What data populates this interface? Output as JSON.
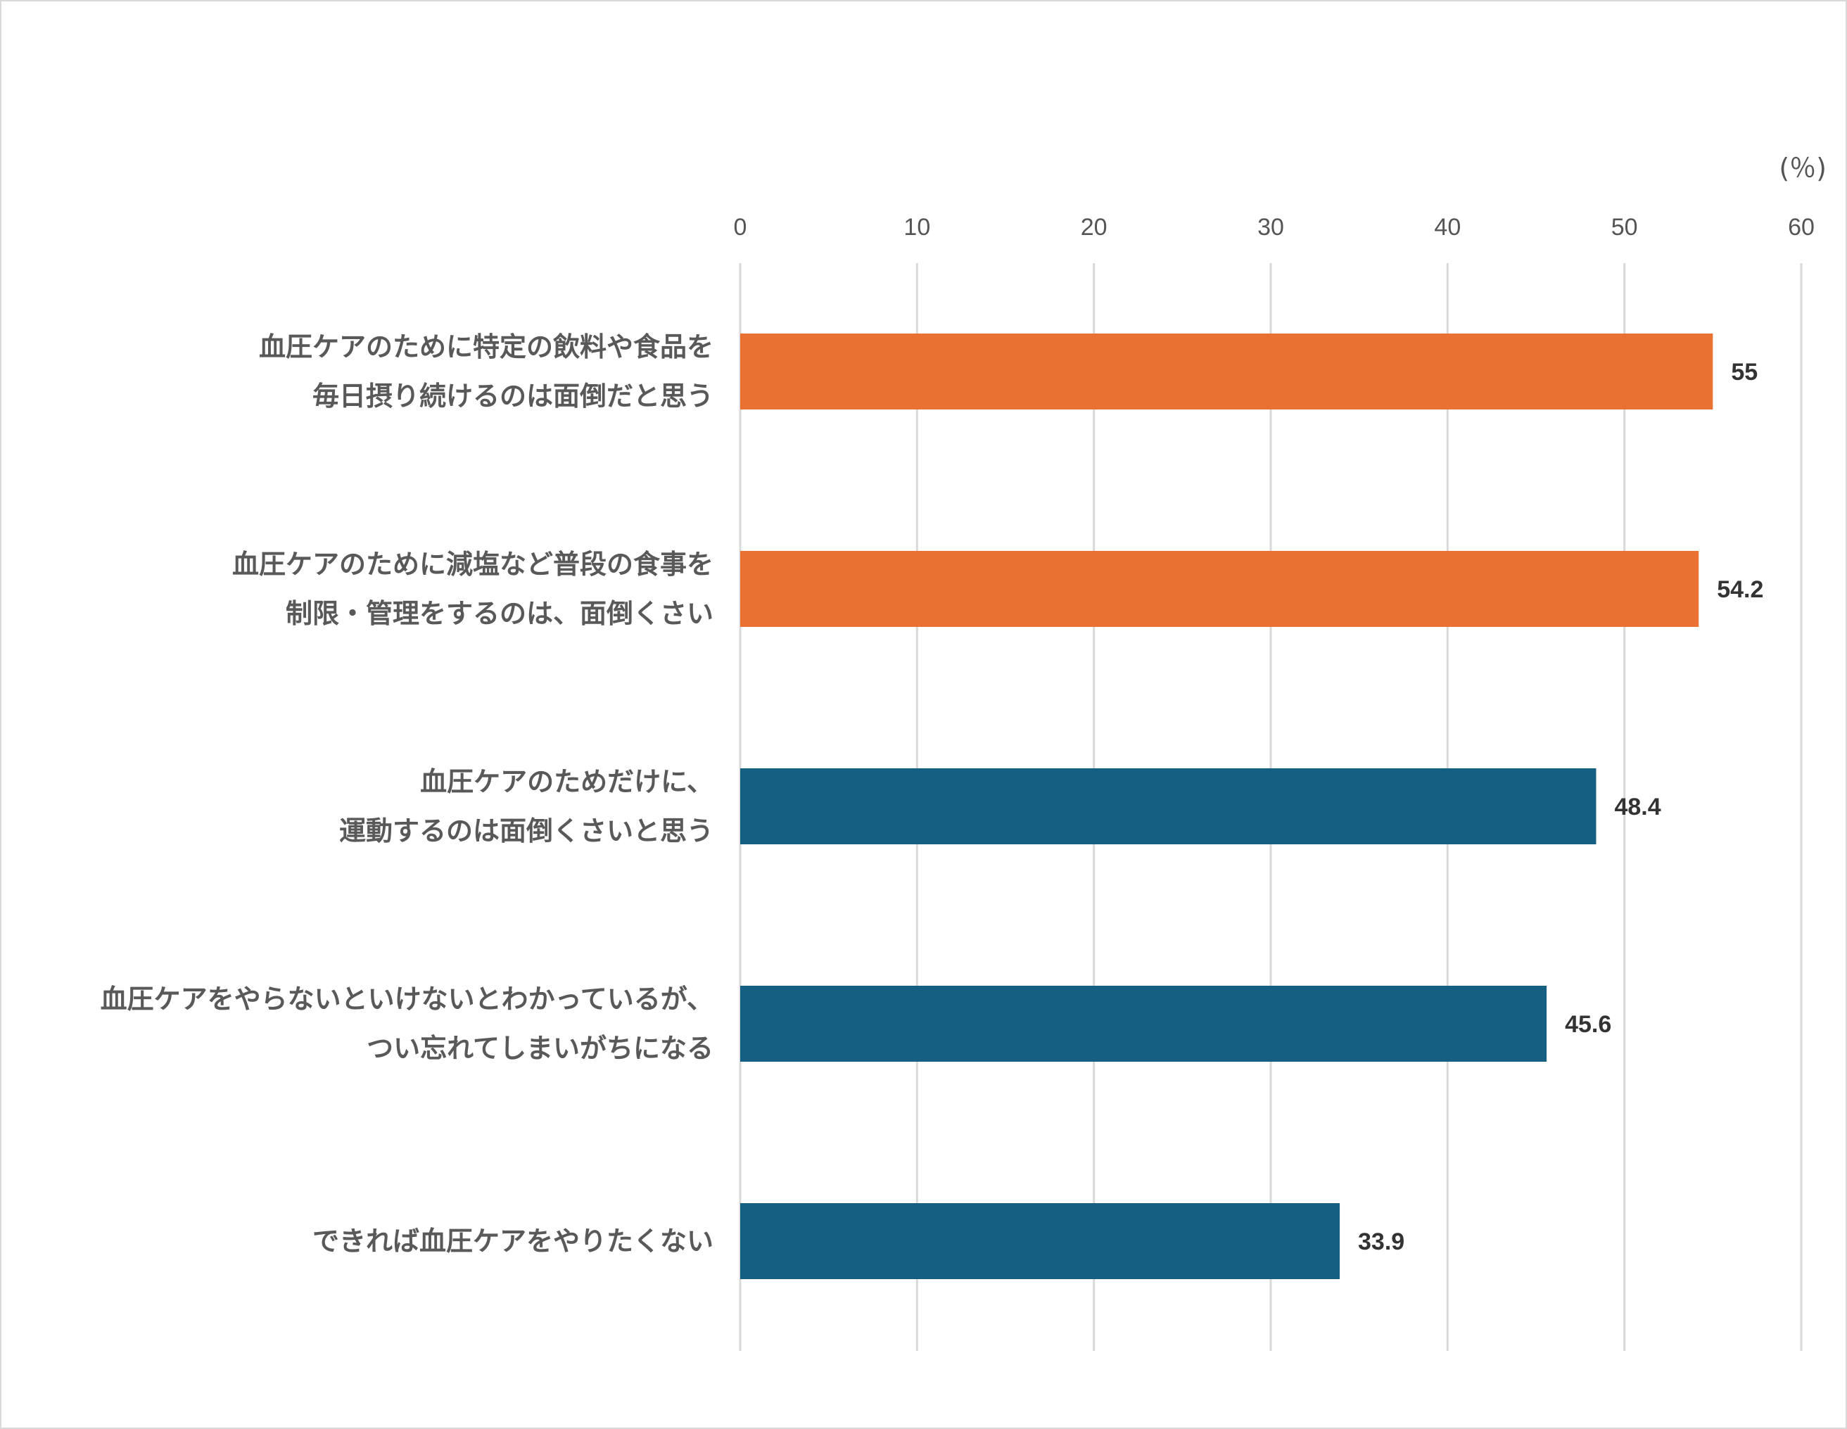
{
  "chart_data": {
    "type": "bar",
    "orientation": "horizontal",
    "unit_label": "(％)",
    "xlim": [
      0,
      60
    ],
    "x_ticks": [
      "0",
      "10",
      "20",
      "30",
      "40",
      "50",
      "60"
    ],
    "x_axis_position": "top",
    "grid": true,
    "categories": [
      [
        "血圧ケアのために特定の飲料や食品を",
        "毎日摂り続けるのは面倒だと思う"
      ],
      [
        "血圧ケアのために減塩など普段の食事を",
        "制限・管理をするのは、面倒くさい"
      ],
      [
        "血圧ケアのためだけに、",
        "運動するのは面倒くさいと思う"
      ],
      [
        "血圧ケアをやらないといけないとわかっているが、",
        "つい忘れてしまいがちになる"
      ],
      [
        "できれば血圧ケアをやりたくない"
      ]
    ],
    "values": [
      55,
      54.2,
      48.4,
      45.6,
      33.9
    ],
    "value_labels": [
      "55",
      "54.2",
      "48.4",
      "45.6",
      "33.9"
    ],
    "bar_colors": [
      "#E97132",
      "#E97132",
      "#156082",
      "#156082",
      "#156082"
    ]
  }
}
